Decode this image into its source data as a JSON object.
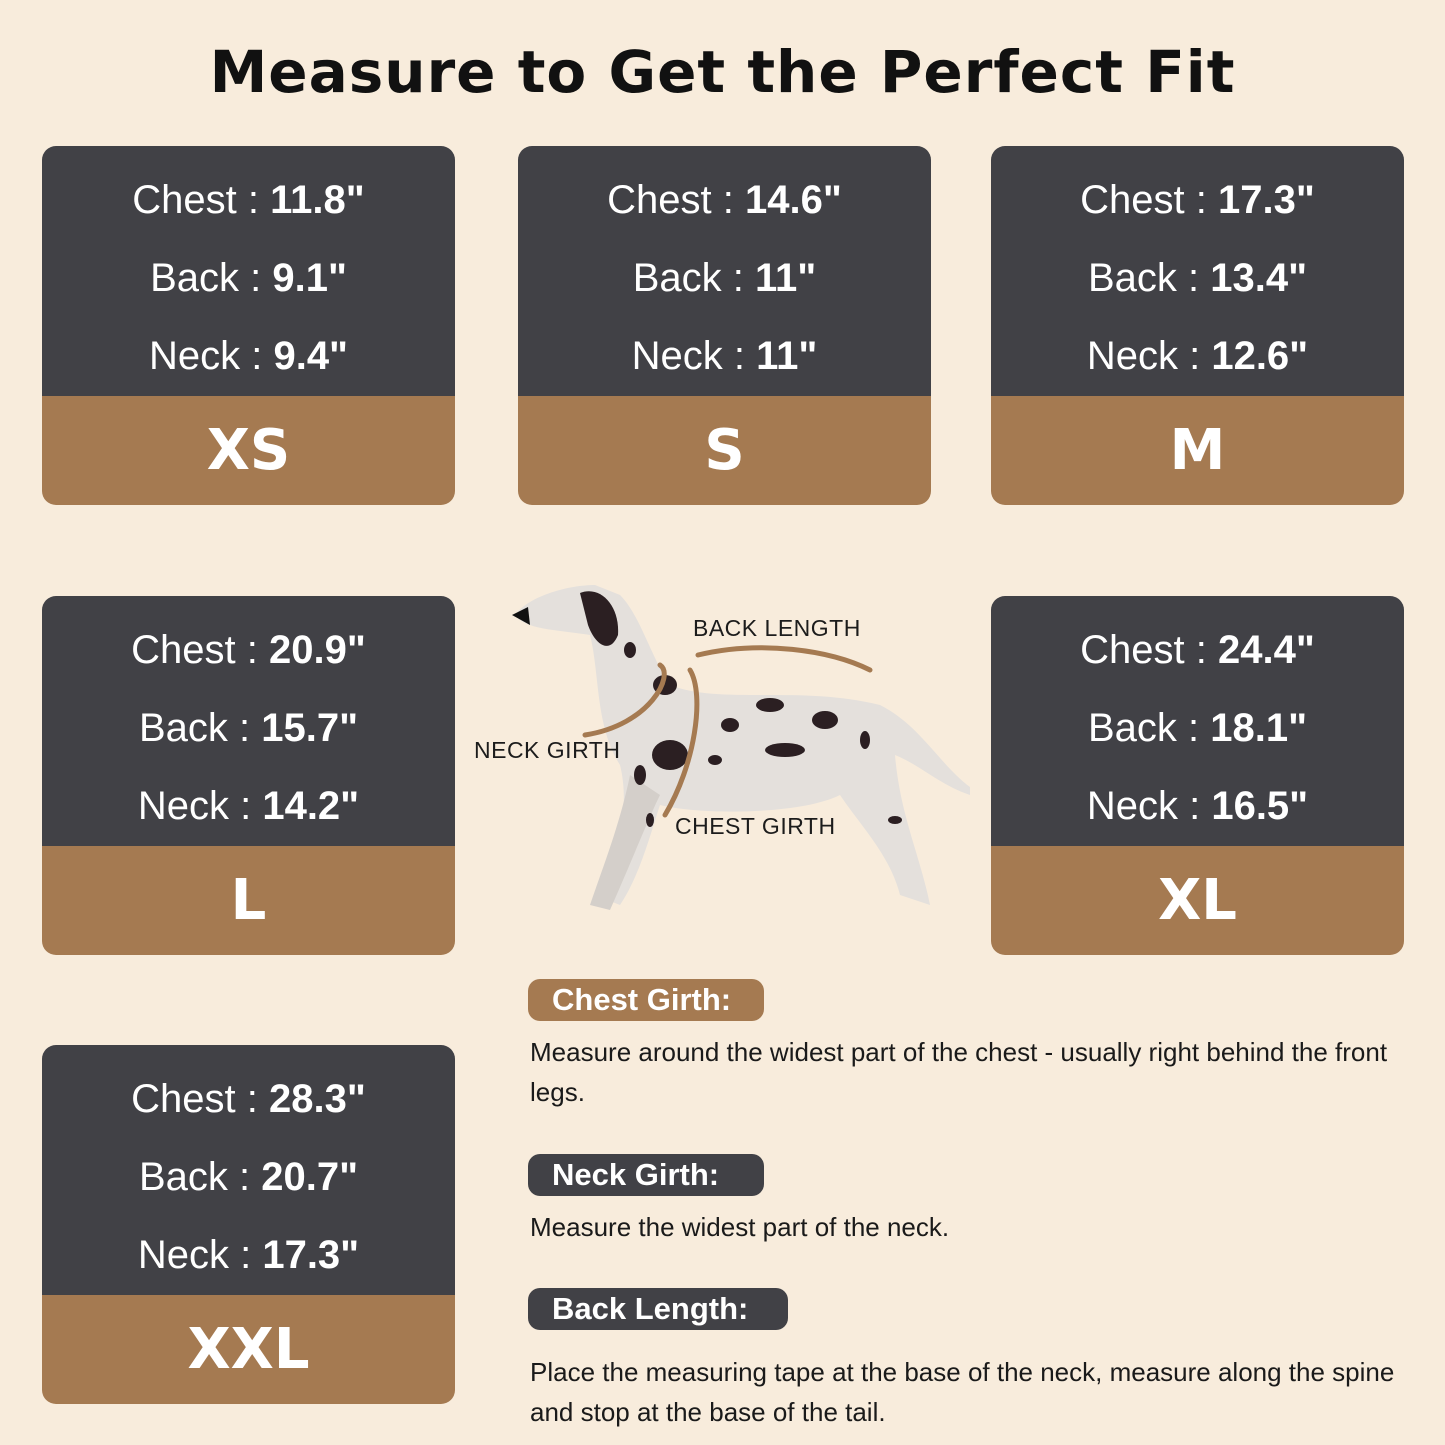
{
  "title": "Measure to Get the Perfect Fit",
  "colors": {
    "background": "#f8ecdc",
    "card_dark": "#414146",
    "card_accent": "#a57a51"
  },
  "sizes": [
    {
      "size": "XS",
      "chest": "11.8\"",
      "back": "9.1\"",
      "neck": "9.4\""
    },
    {
      "size": "S",
      "chest": "14.6\"",
      "back": "11\"",
      "neck": "11\""
    },
    {
      "size": "M",
      "chest": "17.3\"",
      "back": "13.4\"",
      "neck": "12.6\""
    },
    {
      "size": "L",
      "chest": "20.9\"",
      "back": "15.7\"",
      "neck": "14.2\""
    },
    {
      "size": "XL",
      "chest": "24.4\"",
      "back": "18.1\"",
      "neck": "16.5\""
    },
    {
      "size": "XXL",
      "chest": "28.3\"",
      "back": "20.7\"",
      "neck": "17.3\""
    }
  ],
  "labels": {
    "chest": "Chest : ",
    "back": "Back : ",
    "neck": "Neck : "
  },
  "diagram": {
    "back_length": "BACK LENGTH",
    "neck_girth": "NECK GIRTH",
    "chest_girth": "CHEST GIRTH"
  },
  "instructions": [
    {
      "heading": "Chest Girth:",
      "text": "Measure around the widest part of the chest - usually right behind the front legs."
    },
    {
      "heading": "Neck Girth:",
      "text": "Measure the widest part of the neck."
    },
    {
      "heading": "Back Length:",
      "text": "Place the measuring tape at the base of the neck, measure along the spine and stop at the base of the tail."
    }
  ]
}
